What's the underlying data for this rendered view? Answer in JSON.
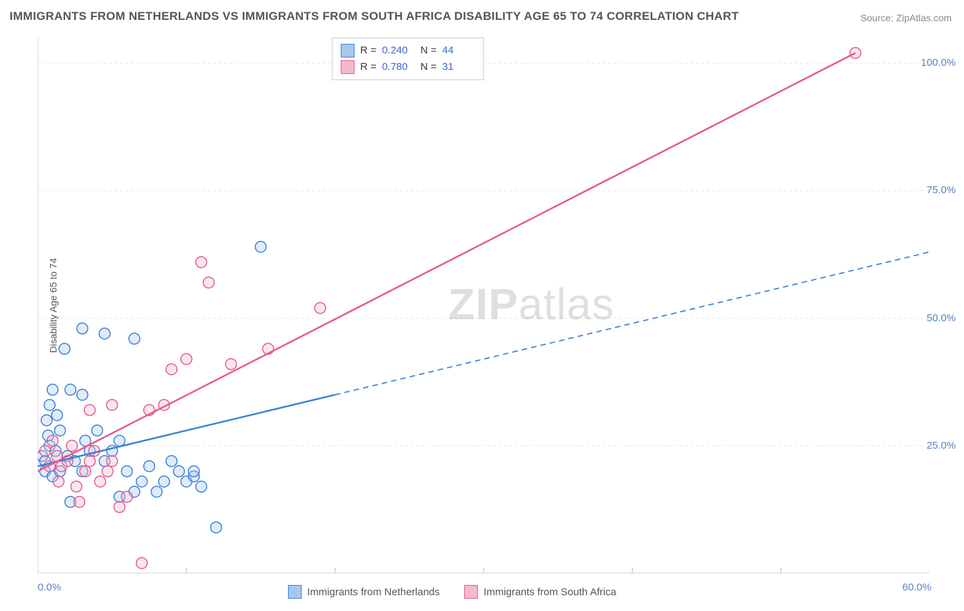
{
  "title": "IMMIGRANTS FROM NETHERLANDS VS IMMIGRANTS FROM SOUTH AFRICA DISABILITY AGE 65 TO 74 CORRELATION CHART",
  "source": "Source: ZipAtlas.com",
  "y_axis_label": "Disability Age 65 to 74",
  "watermark": {
    "part1": "ZIP",
    "part2": "atlas"
  },
  "chart": {
    "type": "scatter-with-regression",
    "xlim": [
      0,
      60
    ],
    "ylim": [
      0,
      105
    ],
    "x_ticks": [
      0,
      60
    ],
    "x_tick_labels": [
      "0.0%",
      "60.0%"
    ],
    "x_minor_ticks": [
      10,
      20,
      30,
      40,
      50
    ],
    "y_ticks": [
      25,
      50,
      75,
      100
    ],
    "y_tick_labels": [
      "25.0%",
      "50.0%",
      "75.0%",
      "100.0%"
    ],
    "grid_color": "#e5e5e5",
    "grid_dash": "4,4",
    "axis_color": "#cccccc",
    "background_color": "#ffffff",
    "marker_radius": 8,
    "marker_fill_opacity": 0.35,
    "marker_stroke_width": 1.5,
    "line_width": 2.5,
    "series": [
      {
        "key": "netherlands",
        "label": "Immigrants from Netherlands",
        "color_stroke": "#3b82d6",
        "color_fill": "#a9c7ed",
        "r_value": "0.240",
        "n_value": "44",
        "regression": {
          "x1": 0,
          "y1": 21,
          "x2_solid": 20,
          "y2_solid": 35,
          "x2_dash": 60,
          "y2_dash": 63
        },
        "points": [
          [
            0.3,
            23
          ],
          [
            0.5,
            22
          ],
          [
            0.8,
            25
          ],
          [
            0.5,
            20
          ],
          [
            1.0,
            19
          ],
          [
            1.2,
            24
          ],
          [
            0.7,
            27
          ],
          [
            1.3,
            31
          ],
          [
            1.5,
            28
          ],
          [
            0.6,
            30
          ],
          [
            2.2,
            36
          ],
          [
            1.0,
            36
          ],
          [
            0.8,
            33
          ],
          [
            2.0,
            23
          ],
          [
            1.5,
            20
          ],
          [
            2.5,
            22
          ],
          [
            3.0,
            20
          ],
          [
            3.2,
            26
          ],
          [
            3.5,
            24
          ],
          [
            3.0,
            35
          ],
          [
            4.0,
            28
          ],
          [
            4.5,
            22
          ],
          [
            5.0,
            24
          ],
          [
            5.5,
            26
          ],
          [
            6.0,
            20
          ],
          [
            6.5,
            16
          ],
          [
            7.0,
            18
          ],
          [
            7.5,
            21
          ],
          [
            8.0,
            16
          ],
          [
            8.5,
            18
          ],
          [
            9.0,
            22
          ],
          [
            9.5,
            20
          ],
          [
            10.0,
            18
          ],
          [
            10.5,
            19
          ],
          [
            11.0,
            17
          ],
          [
            12.0,
            9
          ],
          [
            4.5,
            47
          ],
          [
            3.0,
            48
          ],
          [
            6.5,
            46
          ],
          [
            1.8,
            44
          ],
          [
            15.0,
            64
          ],
          [
            10.5,
            20
          ],
          [
            5.5,
            15
          ],
          [
            2.2,
            14
          ]
        ]
      },
      {
        "key": "south_africa",
        "label": "Immigrants from South Africa",
        "color_stroke": "#e75a8d",
        "color_fill": "#f4b9ce",
        "r_value": "0.780",
        "n_value": "31",
        "regression": {
          "x1": 0,
          "y1": 20,
          "x2_solid": 55,
          "y2_solid": 102,
          "x2_dash": 55,
          "y2_dash": 102
        },
        "points": [
          [
            0.5,
            24
          ],
          [
            0.8,
            21
          ],
          [
            1.0,
            26
          ],
          [
            1.3,
            23
          ],
          [
            1.6,
            21
          ],
          [
            1.4,
            18
          ],
          [
            2.0,
            22
          ],
          [
            2.3,
            25
          ],
          [
            2.6,
            17
          ],
          [
            2.8,
            14
          ],
          [
            3.2,
            20
          ],
          [
            3.5,
            22
          ],
          [
            3.8,
            24
          ],
          [
            4.2,
            18
          ],
          [
            4.7,
            20
          ],
          [
            5.0,
            22
          ],
          [
            5.5,
            13
          ],
          [
            6.0,
            15
          ],
          [
            7.0,
            2
          ],
          [
            7.5,
            32
          ],
          [
            8.5,
            33
          ],
          [
            9.0,
            40
          ],
          [
            10.0,
            42
          ],
          [
            11.0,
            61
          ],
          [
            11.5,
            57
          ],
          [
            13.0,
            41
          ],
          [
            15.5,
            44
          ],
          [
            19.0,
            52
          ],
          [
            5.0,
            33
          ],
          [
            3.5,
            32
          ],
          [
            55.0,
            102
          ]
        ]
      }
    ]
  },
  "legend_top": {
    "r_label": "R =",
    "n_label": "N ="
  }
}
